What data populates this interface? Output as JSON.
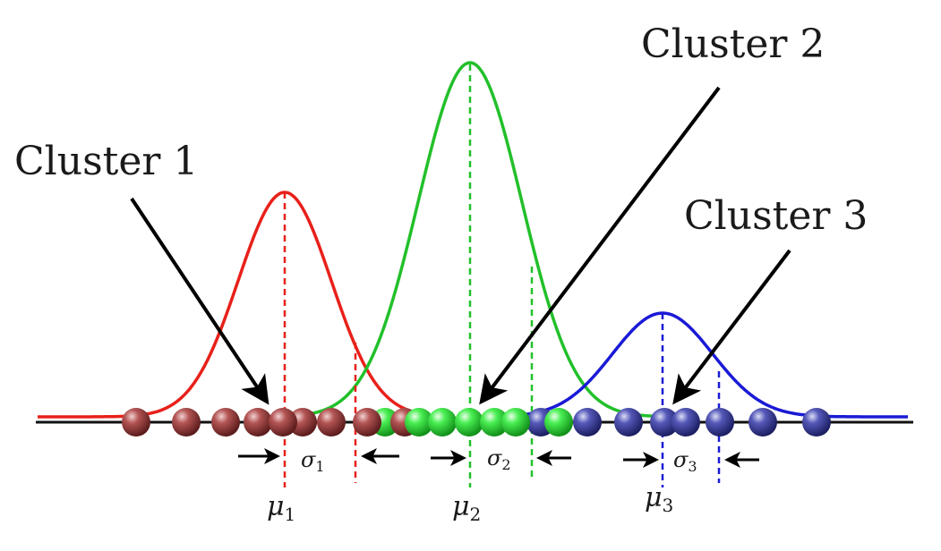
{
  "clusters": [
    {
      "label": "Cluster 1",
      "mu_symbol": "μ",
      "mu_sub": "1",
      "sigma_symbol": "σ",
      "sigma_sub": "1",
      "color": "#e8201a",
      "ball_color": "#9e3a3a"
    },
    {
      "label": "Cluster 2",
      "mu_symbol": "μ",
      "mu_sub": "2",
      "sigma_symbol": "σ",
      "sigma_sub": "2",
      "color": "#22c02a",
      "ball_color": "#2ee03a"
    },
    {
      "label": "Cluster 3",
      "mu_symbol": "μ",
      "mu_sub": "3",
      "sigma_symbol": "σ",
      "sigma_sub": "3",
      "color": "#1a1ad6",
      "ball_color": "#3a3e9e"
    }
  ],
  "colors": {
    "axis": "#111111",
    "arrow": "#000000",
    "background": "#ffffff"
  }
}
